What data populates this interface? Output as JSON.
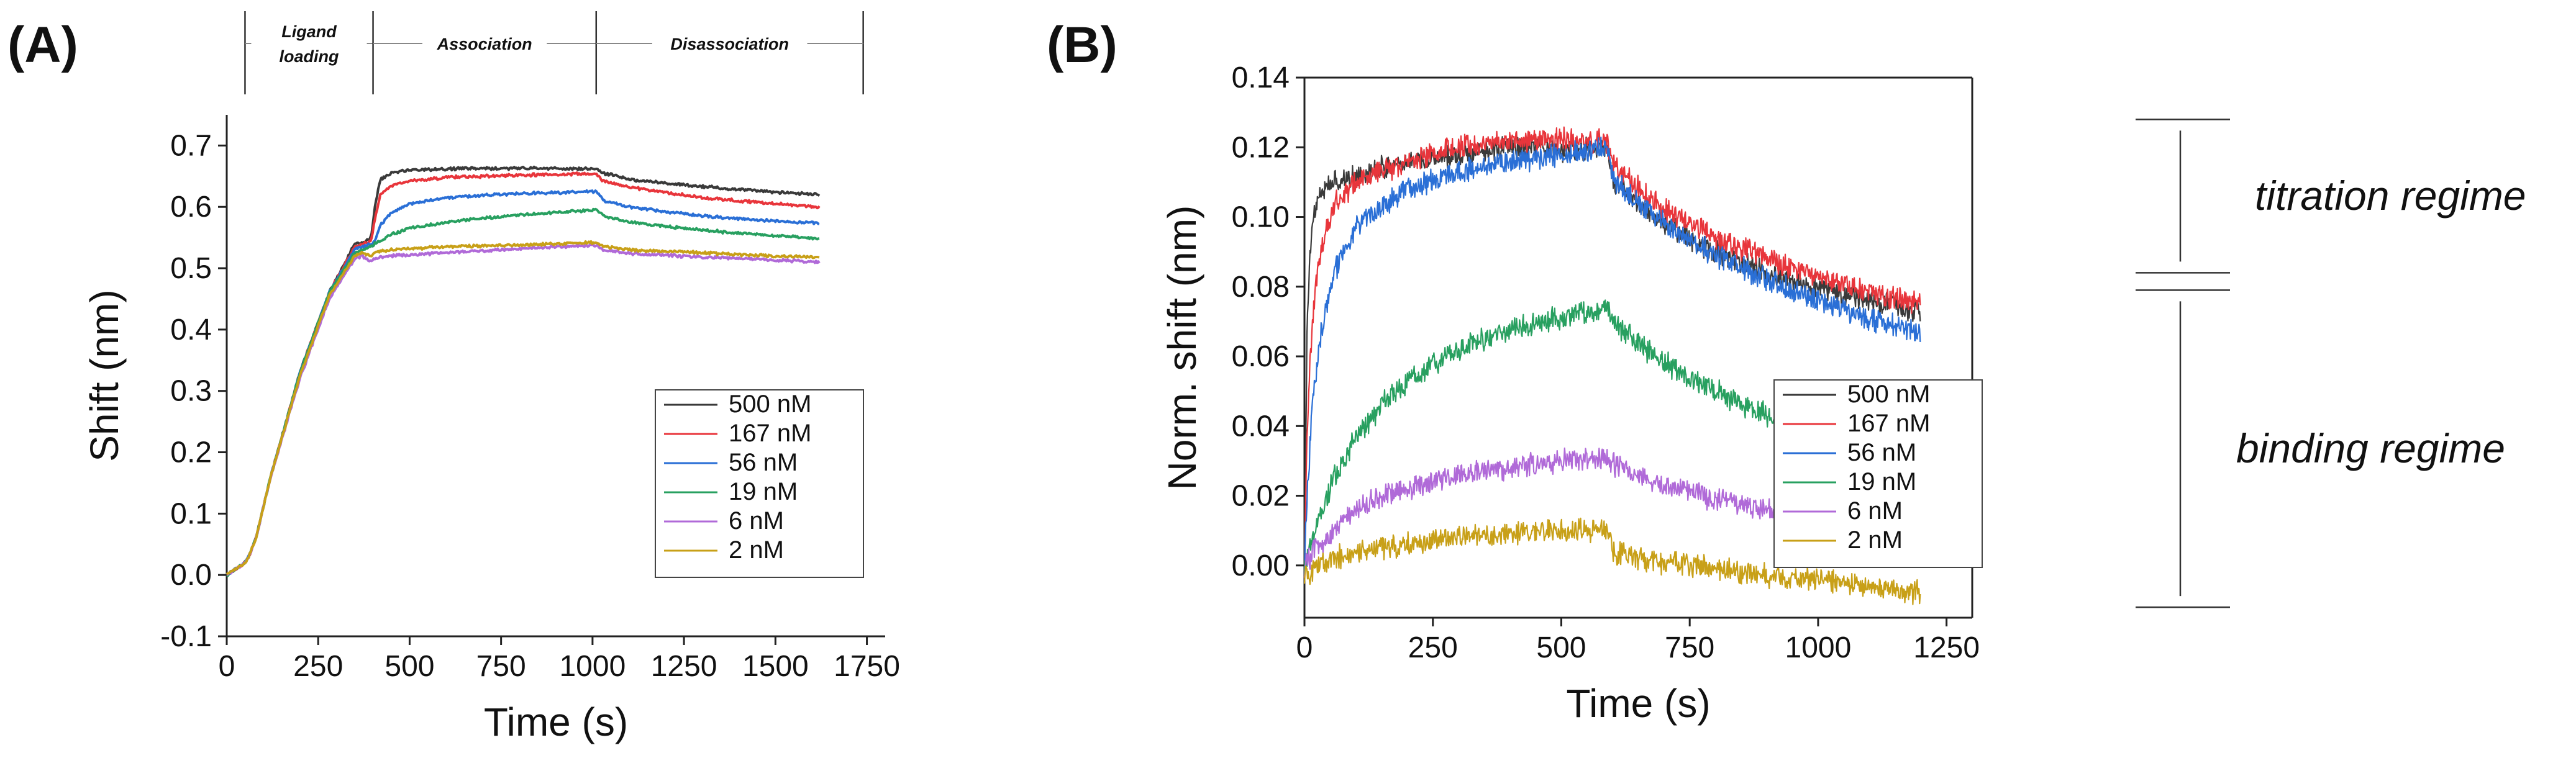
{
  "panels": {
    "a": {
      "label": "(A)"
    },
    "b": {
      "label": "(B)"
    }
  },
  "phases": [
    {
      "label": "Ligand loading",
      "t_start": 50,
      "t_end": 400
    },
    {
      "label": "Association",
      "t_start": 400,
      "t_end": 1010
    },
    {
      "label": "Disassociation",
      "t_start": 1010,
      "t_end": 1740
    }
  ],
  "regimes": [
    {
      "label": "titration regime",
      "y_top": 0.128,
      "y_bottom": 0.084
    },
    {
      "label": "binding regime",
      "y_top": 0.079,
      "y_bottom": -0.012
    }
  ],
  "colors": {
    "500 nM": "#3a3a3a",
    "167 nM": "#e8353b",
    "56 nM": "#2a6fd6",
    "19 nM": "#28a060",
    "6 nM": "#b06ad8",
    "2 nM": "#c8a018"
  },
  "chart_data": [
    {
      "type": "line",
      "panel": "A",
      "title": "",
      "xlabel": "Time (s)",
      "ylabel": "Shift (nm)",
      "xlim": [
        0,
        1800
      ],
      "ylim": [
        -0.1,
        0.75
      ],
      "xticks": [
        0,
        250,
        500,
        750,
        1000,
        1250,
        1500,
        1750
      ],
      "yticks": [
        -0.1,
        0.0,
        0.1,
        0.2,
        0.3,
        0.4,
        0.5,
        0.6,
        0.7
      ],
      "legend_position": "bottom-right",
      "series": [
        {
          "name": "500 nM",
          "x": [
            0,
            50,
            60,
            80,
            120,
            200,
            280,
            350,
            370,
            395,
            405,
            420,
            450,
            500,
            600,
            800,
            1010,
            1030,
            1100,
            1300,
            1500,
            1620
          ],
          "y": [
            0.0,
            0.02,
            0.03,
            0.06,
            0.16,
            0.33,
            0.46,
            0.54,
            0.54,
            0.55,
            0.6,
            0.645,
            0.655,
            0.66,
            0.662,
            0.663,
            0.662,
            0.655,
            0.645,
            0.633,
            0.624,
            0.62
          ]
        },
        {
          "name": "167 nM",
          "x": [
            0,
            50,
            60,
            80,
            120,
            200,
            280,
            350,
            370,
            395,
            405,
            420,
            450,
            500,
            600,
            800,
            1010,
            1030,
            1100,
            1300,
            1500,
            1620
          ],
          "y": [
            0.0,
            0.02,
            0.03,
            0.06,
            0.16,
            0.33,
            0.46,
            0.535,
            0.54,
            0.545,
            0.58,
            0.62,
            0.635,
            0.642,
            0.648,
            0.652,
            0.654,
            0.642,
            0.632,
            0.615,
            0.605,
            0.6
          ]
        },
        {
          "name": "56 nM",
          "x": [
            0,
            50,
            60,
            80,
            120,
            200,
            280,
            350,
            370,
            395,
            405,
            420,
            450,
            500,
            600,
            800,
            1010,
            1030,
            1100,
            1300,
            1500,
            1620
          ],
          "y": [
            0.0,
            0.02,
            0.03,
            0.06,
            0.16,
            0.33,
            0.46,
            0.53,
            0.535,
            0.54,
            0.545,
            0.57,
            0.59,
            0.605,
            0.615,
            0.622,
            0.625,
            0.61,
            0.6,
            0.585,
            0.577,
            0.573
          ]
        },
        {
          "name": "19 nM",
          "x": [
            0,
            50,
            60,
            80,
            120,
            200,
            280,
            350,
            370,
            395,
            405,
            420,
            450,
            500,
            600,
            800,
            1010,
            1030,
            1100,
            1300,
            1500,
            1620
          ],
          "y": [
            0.0,
            0.02,
            0.03,
            0.06,
            0.16,
            0.33,
            0.46,
            0.525,
            0.53,
            0.535,
            0.54,
            0.545,
            0.555,
            0.565,
            0.575,
            0.587,
            0.595,
            0.585,
            0.575,
            0.562,
            0.553,
            0.548
          ]
        },
        {
          "name": "6 nM",
          "x": [
            0,
            50,
            60,
            80,
            120,
            200,
            280,
            350,
            370,
            395,
            405,
            420,
            450,
            500,
            600,
            800,
            1010,
            1030,
            1100,
            1300,
            1500,
            1620
          ],
          "y": [
            0.0,
            0.02,
            0.03,
            0.06,
            0.16,
            0.32,
            0.45,
            0.515,
            0.52,
            0.51,
            0.515,
            0.518,
            0.52,
            0.522,
            0.525,
            0.532,
            0.538,
            0.53,
            0.524,
            0.518,
            0.513,
            0.51
          ]
        },
        {
          "name": "2 nM",
          "x": [
            0,
            50,
            60,
            80,
            120,
            200,
            280,
            350,
            370,
            395,
            405,
            420,
            450,
            500,
            600,
            800,
            1010,
            1030,
            1100,
            1300,
            1500,
            1620
          ],
          "y": [
            0.0,
            0.02,
            0.03,
            0.06,
            0.16,
            0.325,
            0.455,
            0.52,
            0.525,
            0.52,
            0.525,
            0.528,
            0.53,
            0.532,
            0.535,
            0.538,
            0.542,
            0.536,
            0.53,
            0.525,
            0.52,
            0.518
          ]
        }
      ]
    },
    {
      "type": "line",
      "panel": "B",
      "title": "",
      "xlabel": "Time (s)",
      "ylabel": "Norm. shift (nm)",
      "xlim": [
        0,
        1300
      ],
      "ylim": [
        -0.015,
        0.14
      ],
      "xticks": [
        0,
        250,
        500,
        750,
        1000,
        1250
      ],
      "yticks": [
        0.0,
        0.02,
        0.04,
        0.06,
        0.08,
        0.1,
        0.12,
        0.14
      ],
      "legend_position": "bottom-right",
      "series": [
        {
          "name": "500 nM",
          "x": [
            0,
            5,
            15,
            30,
            60,
            100,
            200,
            300,
            400,
            500,
            590,
            600,
            650,
            700,
            800,
            900,
            1000,
            1100,
            1200
          ],
          "y": [
            0.0,
            0.07,
            0.1,
            0.107,
            0.11,
            0.112,
            0.116,
            0.118,
            0.12,
            0.119,
            0.12,
            0.11,
            0.104,
            0.098,
            0.09,
            0.084,
            0.08,
            0.076,
            0.073
          ]
        },
        {
          "name": "167 nM",
          "x": [
            0,
            5,
            15,
            30,
            60,
            100,
            200,
            300,
            400,
            500,
            590,
            600,
            650,
            700,
            800,
            900,
            1000,
            1100,
            1200
          ],
          "y": [
            0.0,
            0.04,
            0.07,
            0.09,
            0.104,
            0.11,
            0.116,
            0.12,
            0.122,
            0.122,
            0.122,
            0.115,
            0.108,
            0.102,
            0.094,
            0.088,
            0.083,
            0.078,
            0.075
          ]
        },
        {
          "name": "56 nM",
          "x": [
            0,
            5,
            15,
            30,
            60,
            100,
            200,
            300,
            400,
            500,
            590,
            600,
            650,
            700,
            800,
            900,
            1000,
            1100,
            1200
          ],
          "y": [
            0.0,
            0.02,
            0.045,
            0.065,
            0.085,
            0.097,
            0.108,
            0.113,
            0.116,
            0.118,
            0.12,
            0.111,
            0.104,
            0.098,
            0.089,
            0.082,
            0.076,
            0.071,
            0.067
          ]
        },
        {
          "name": "19 nM",
          "x": [
            0,
            10,
            30,
            60,
            100,
            150,
            200,
            300,
            400,
            500,
            590,
            600,
            650,
            700,
            800,
            900,
            1000,
            1100,
            1200
          ],
          "y": [
            0.0,
            0.005,
            0.015,
            0.026,
            0.037,
            0.046,
            0.053,
            0.062,
            0.068,
            0.071,
            0.074,
            0.07,
            0.064,
            0.058,
            0.05,
            0.043,
            0.038,
            0.034,
            0.031
          ]
        },
        {
          "name": "6 nM",
          "x": [
            0,
            10,
            30,
            60,
            100,
            150,
            200,
            300,
            400,
            500,
            590,
            600,
            650,
            700,
            800,
            900,
            1000,
            1100,
            1200
          ],
          "y": [
            0.0,
            0.002,
            0.006,
            0.011,
            0.016,
            0.02,
            0.022,
            0.026,
            0.028,
            0.03,
            0.031,
            0.029,
            0.026,
            0.023,
            0.019,
            0.016,
            0.013,
            0.01,
            0.008
          ]
        },
        {
          "name": "2 nM",
          "x": [
            0,
            10,
            30,
            60,
            100,
            150,
            200,
            300,
            400,
            500,
            590,
            600,
            650,
            700,
            800,
            900,
            1000,
            1100,
            1200
          ],
          "y": [
            -0.003,
            -0.002,
            0.0,
            0.002,
            0.004,
            0.005,
            0.006,
            0.008,
            0.009,
            0.01,
            0.01,
            0.004,
            0.002,
            0.001,
            -0.001,
            -0.003,
            -0.004,
            -0.006,
            -0.008
          ]
        }
      ]
    }
  ]
}
